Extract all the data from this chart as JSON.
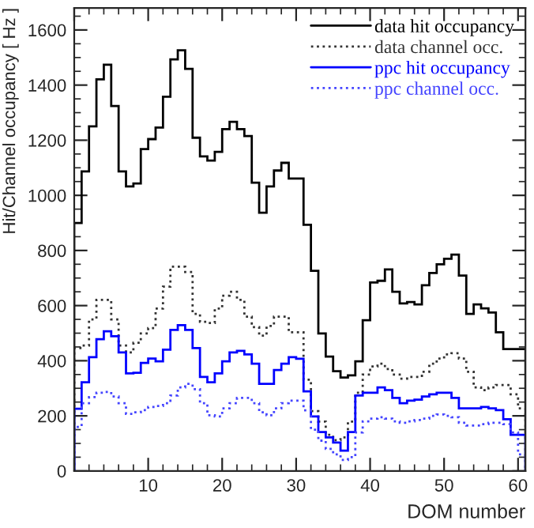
{
  "chart_data": {
    "type": "histogram",
    "xlabel": "DOM number",
    "ylabel": "Hit/Channel occupancy [ Hz ]",
    "bins": [
      0,
      1,
      2,
      3,
      4,
      5,
      6,
      7,
      8,
      9,
      10,
      11,
      12,
      13,
      14,
      15,
      16,
      17,
      18,
      19,
      20,
      21,
      22,
      23,
      24,
      25,
      26,
      27,
      28,
      29,
      30,
      31,
      32,
      33,
      34,
      35,
      36,
      37,
      38,
      39,
      40,
      41,
      42,
      43,
      44,
      45,
      46,
      47,
      48,
      49,
      50,
      51,
      52,
      53,
      54,
      55,
      56,
      57,
      58,
      59,
      60,
      61
    ],
    "series": [
      {
        "name": "data hit occupancy",
        "color": "#000000",
        "line_style": "solid",
        "values": [
          900,
          1087,
          1250,
          1421,
          1474,
          1324,
          1087,
          1032,
          1043,
          1168,
          1204,
          1246,
          1358,
          1493,
          1526,
          1459,
          1209,
          1141,
          1126,
          1158,
          1240,
          1267,
          1240,
          1215,
          1046,
          937,
          1032,
          1090,
          1118,
          1061,
          1061,
          893,
          726,
          499,
          415,
          362,
          339,
          347,
          398,
          547,
          684,
          690,
          731,
          650,
          608,
          613,
          604,
          674,
          718,
          750,
          770,
          785,
          709,
          570,
          604,
          590,
          575,
          503,
          442,
          442,
          442
        ]
      },
      {
        "name": "data channel occ.",
        "color": "#333333",
        "line_style": "dotted",
        "values": [
          446,
          455,
          550,
          621,
          621,
          550,
          455,
          430,
          465,
          499,
          518,
          589,
          669,
          741,
          741,
          722,
          570,
          541,
          537,
          589,
          636,
          650,
          621,
          560,
          522,
          491,
          526,
          560,
          560,
          503,
          503,
          331,
          217,
          179,
          131,
          112,
          122,
          179,
          284,
          350,
          379,
          389,
          370,
          350,
          335,
          341,
          341,
          360,
          389,
          408,
          423,
          427,
          408,
          360,
          303,
          293,
          303,
          312,
          312,
          278,
          227
        ]
      },
      {
        "name": "ppc hit occupancy",
        "color": "#0000ff",
        "line_style": "solid",
        "values": [
          226,
          322,
          413,
          478,
          507,
          489,
          430,
          354,
          356,
          392,
          408,
          398,
          440,
          512,
          529,
          512,
          446,
          341,
          322,
          354,
          398,
          430,
          436,
          423,
          389,
          316,
          316,
          366,
          389,
          413,
          407,
          289,
          198,
          141,
          122,
          103,
          74,
          141,
          274,
          284,
          284,
          303,
          293,
          265,
          246,
          255,
          259,
          270,
          278,
          284,
          284,
          265,
          227,
          227,
          227,
          232,
          227,
          221,
          188,
          131,
          131
        ]
      },
      {
        "name": "ppc channel occ.",
        "color": "#4444ff",
        "line_style": "dotted",
        "values": [
          160,
          246,
          268,
          284,
          287,
          270,
          246,
          207,
          213,
          221,
          232,
          236,
          246,
          274,
          303,
          316,
          297,
          246,
          202,
          198,
          227,
          246,
          265,
          265,
          246,
          213,
          202,
          227,
          246,
          255,
          255,
          220,
          150,
          110,
          80,
          60,
          40,
          50,
          140,
          180,
          190,
          195,
          190,
          180,
          175,
          180,
          185,
          190,
          200,
          205,
          200,
          195,
          175,
          165,
          165,
          170,
          175,
          175,
          170,
          140,
          60
        ]
      }
    ],
    "xlim": [
      0,
      61
    ],
    "xticks": [
      {
        "value": 0,
        "label": null
      },
      10,
      20,
      30,
      40,
      50,
      60
    ],
    "ylim": [
      0,
      1680
    ],
    "yticks": [
      0,
      200,
      400,
      600,
      800,
      1000,
      1200,
      1400,
      1600
    ],
    "legend": "top right",
    "grid": false
  }
}
